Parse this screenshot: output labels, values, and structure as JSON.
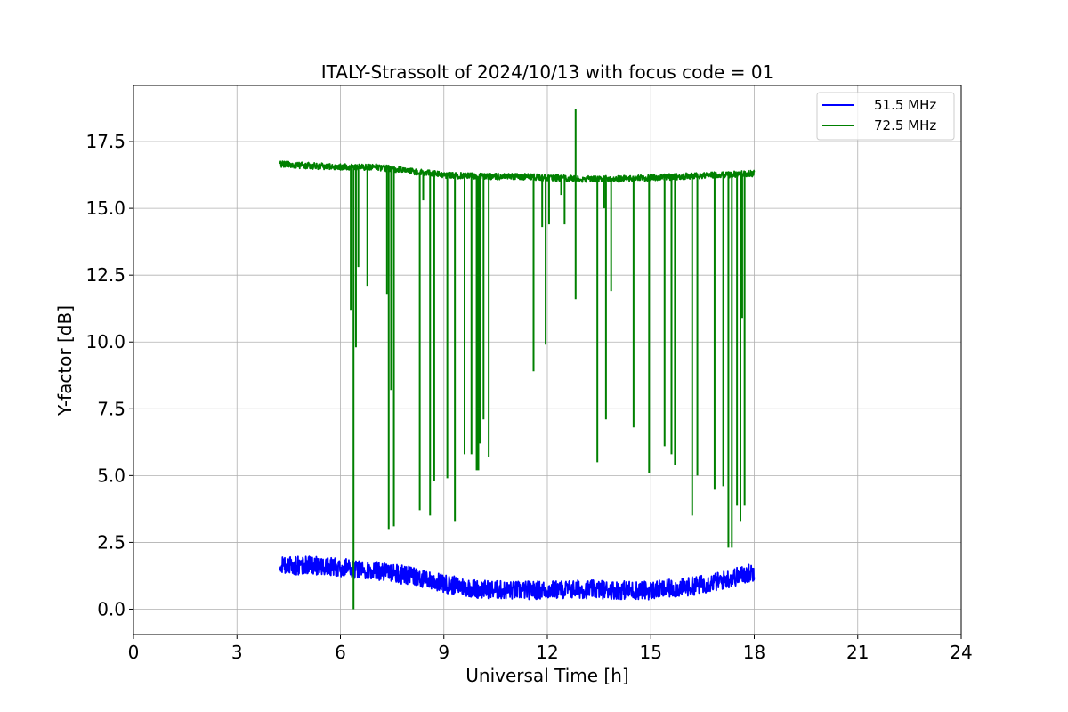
{
  "chart_data": {
    "type": "line",
    "title": "ITALY-Strassolt of 2024/10/13 with focus code = 01",
    "xlabel": "Universal Time [h]",
    "ylabel": "Y-factor [dB]",
    "xlim": [
      0,
      24
    ],
    "ylim": [
      -0.95,
      19.6
    ],
    "xticks": [
      0,
      3,
      6,
      9,
      12,
      15,
      18,
      21,
      24
    ],
    "xtick_labels": [
      "0",
      "3",
      "6",
      "9",
      "12",
      "15",
      "18",
      "21",
      "24"
    ],
    "yticks": [
      0.0,
      2.5,
      5.0,
      7.5,
      10.0,
      12.5,
      15.0,
      17.5
    ],
    "ytick_labels": [
      "0.0",
      "2.5",
      "5.0",
      "7.5",
      "10.0",
      "12.5",
      "15.0",
      "17.5"
    ],
    "grid": true,
    "legend_position": "top-right",
    "series": [
      {
        "name": "51.5 MHz",
        "color": "#0000ff",
        "baseline": [
          [
            4.25,
            1.6
          ],
          [
            5.0,
            1.65
          ],
          [
            6.0,
            1.55
          ],
          [
            7.0,
            1.45
          ],
          [
            8.0,
            1.25
          ],
          [
            9.0,
            0.95
          ],
          [
            10.0,
            0.75
          ],
          [
            11.0,
            0.7
          ],
          [
            12.0,
            0.72
          ],
          [
            13.0,
            0.75
          ],
          [
            14.0,
            0.72
          ],
          [
            15.0,
            0.7
          ],
          [
            16.0,
            0.82
          ],
          [
            17.0,
            1.05
          ],
          [
            18.0,
            1.4
          ]
        ],
        "noise_amplitude": 0.35,
        "dips": []
      },
      {
        "name": "72.5 MHz",
        "color": "#008000",
        "baseline": [
          [
            4.25,
            16.65
          ],
          [
            5.0,
            16.6
          ],
          [
            6.0,
            16.55
          ],
          [
            7.0,
            16.55
          ],
          [
            8.0,
            16.4
          ],
          [
            9.0,
            16.25
          ],
          [
            10.0,
            16.2
          ],
          [
            11.0,
            16.2
          ],
          [
            12.0,
            16.15
          ],
          [
            13.0,
            16.1
          ],
          [
            14.0,
            16.1
          ],
          [
            15.0,
            16.15
          ],
          [
            16.0,
            16.2
          ],
          [
            17.0,
            16.25
          ],
          [
            18.0,
            16.3
          ]
        ],
        "noise_amplitude": 0.12,
        "dips": [
          [
            6.3,
            11.2
          ],
          [
            6.38,
            0.0
          ],
          [
            6.45,
            9.8
          ],
          [
            6.52,
            12.8
          ],
          [
            6.78,
            12.1
          ],
          [
            7.35,
            11.8
          ],
          [
            7.4,
            3.0
          ],
          [
            7.47,
            8.2
          ],
          [
            7.55,
            3.1
          ],
          [
            8.3,
            3.7
          ],
          [
            8.4,
            15.3
          ],
          [
            8.6,
            3.5
          ],
          [
            8.72,
            4.8
          ],
          [
            9.1,
            4.9
          ],
          [
            9.32,
            3.3
          ],
          [
            9.6,
            5.8
          ],
          [
            9.8,
            5.8
          ],
          [
            9.95,
            5.2
          ],
          [
            10.0,
            5.2
          ],
          [
            10.05,
            6.2
          ],
          [
            10.15,
            7.1
          ],
          [
            10.3,
            5.7
          ],
          [
            11.6,
            8.9
          ],
          [
            11.85,
            14.3
          ],
          [
            11.95,
            9.9
          ],
          [
            12.05,
            14.4
          ],
          [
            12.4,
            15.5
          ],
          [
            12.5,
            14.4
          ],
          [
            13.45,
            5.5
          ],
          [
            13.65,
            15.0
          ],
          [
            13.7,
            7.1
          ],
          [
            13.85,
            11.9
          ],
          [
            14.5,
            6.8
          ],
          [
            14.95,
            5.1
          ],
          [
            15.4,
            6.1
          ],
          [
            15.6,
            5.8
          ],
          [
            15.7,
            5.4
          ],
          [
            16.2,
            3.5
          ],
          [
            16.35,
            5.0
          ],
          [
            16.85,
            4.5
          ],
          [
            17.1,
            4.6
          ],
          [
            17.25,
            2.3
          ],
          [
            17.35,
            2.3
          ],
          [
            17.5,
            3.9
          ],
          [
            17.6,
            3.3
          ],
          [
            17.65,
            10.9
          ],
          [
            17.72,
            3.9
          ]
        ],
        "spikes": [
          [
            12.82,
            18.7
          ],
          [
            12.82,
            11.6
          ]
        ]
      }
    ]
  }
}
